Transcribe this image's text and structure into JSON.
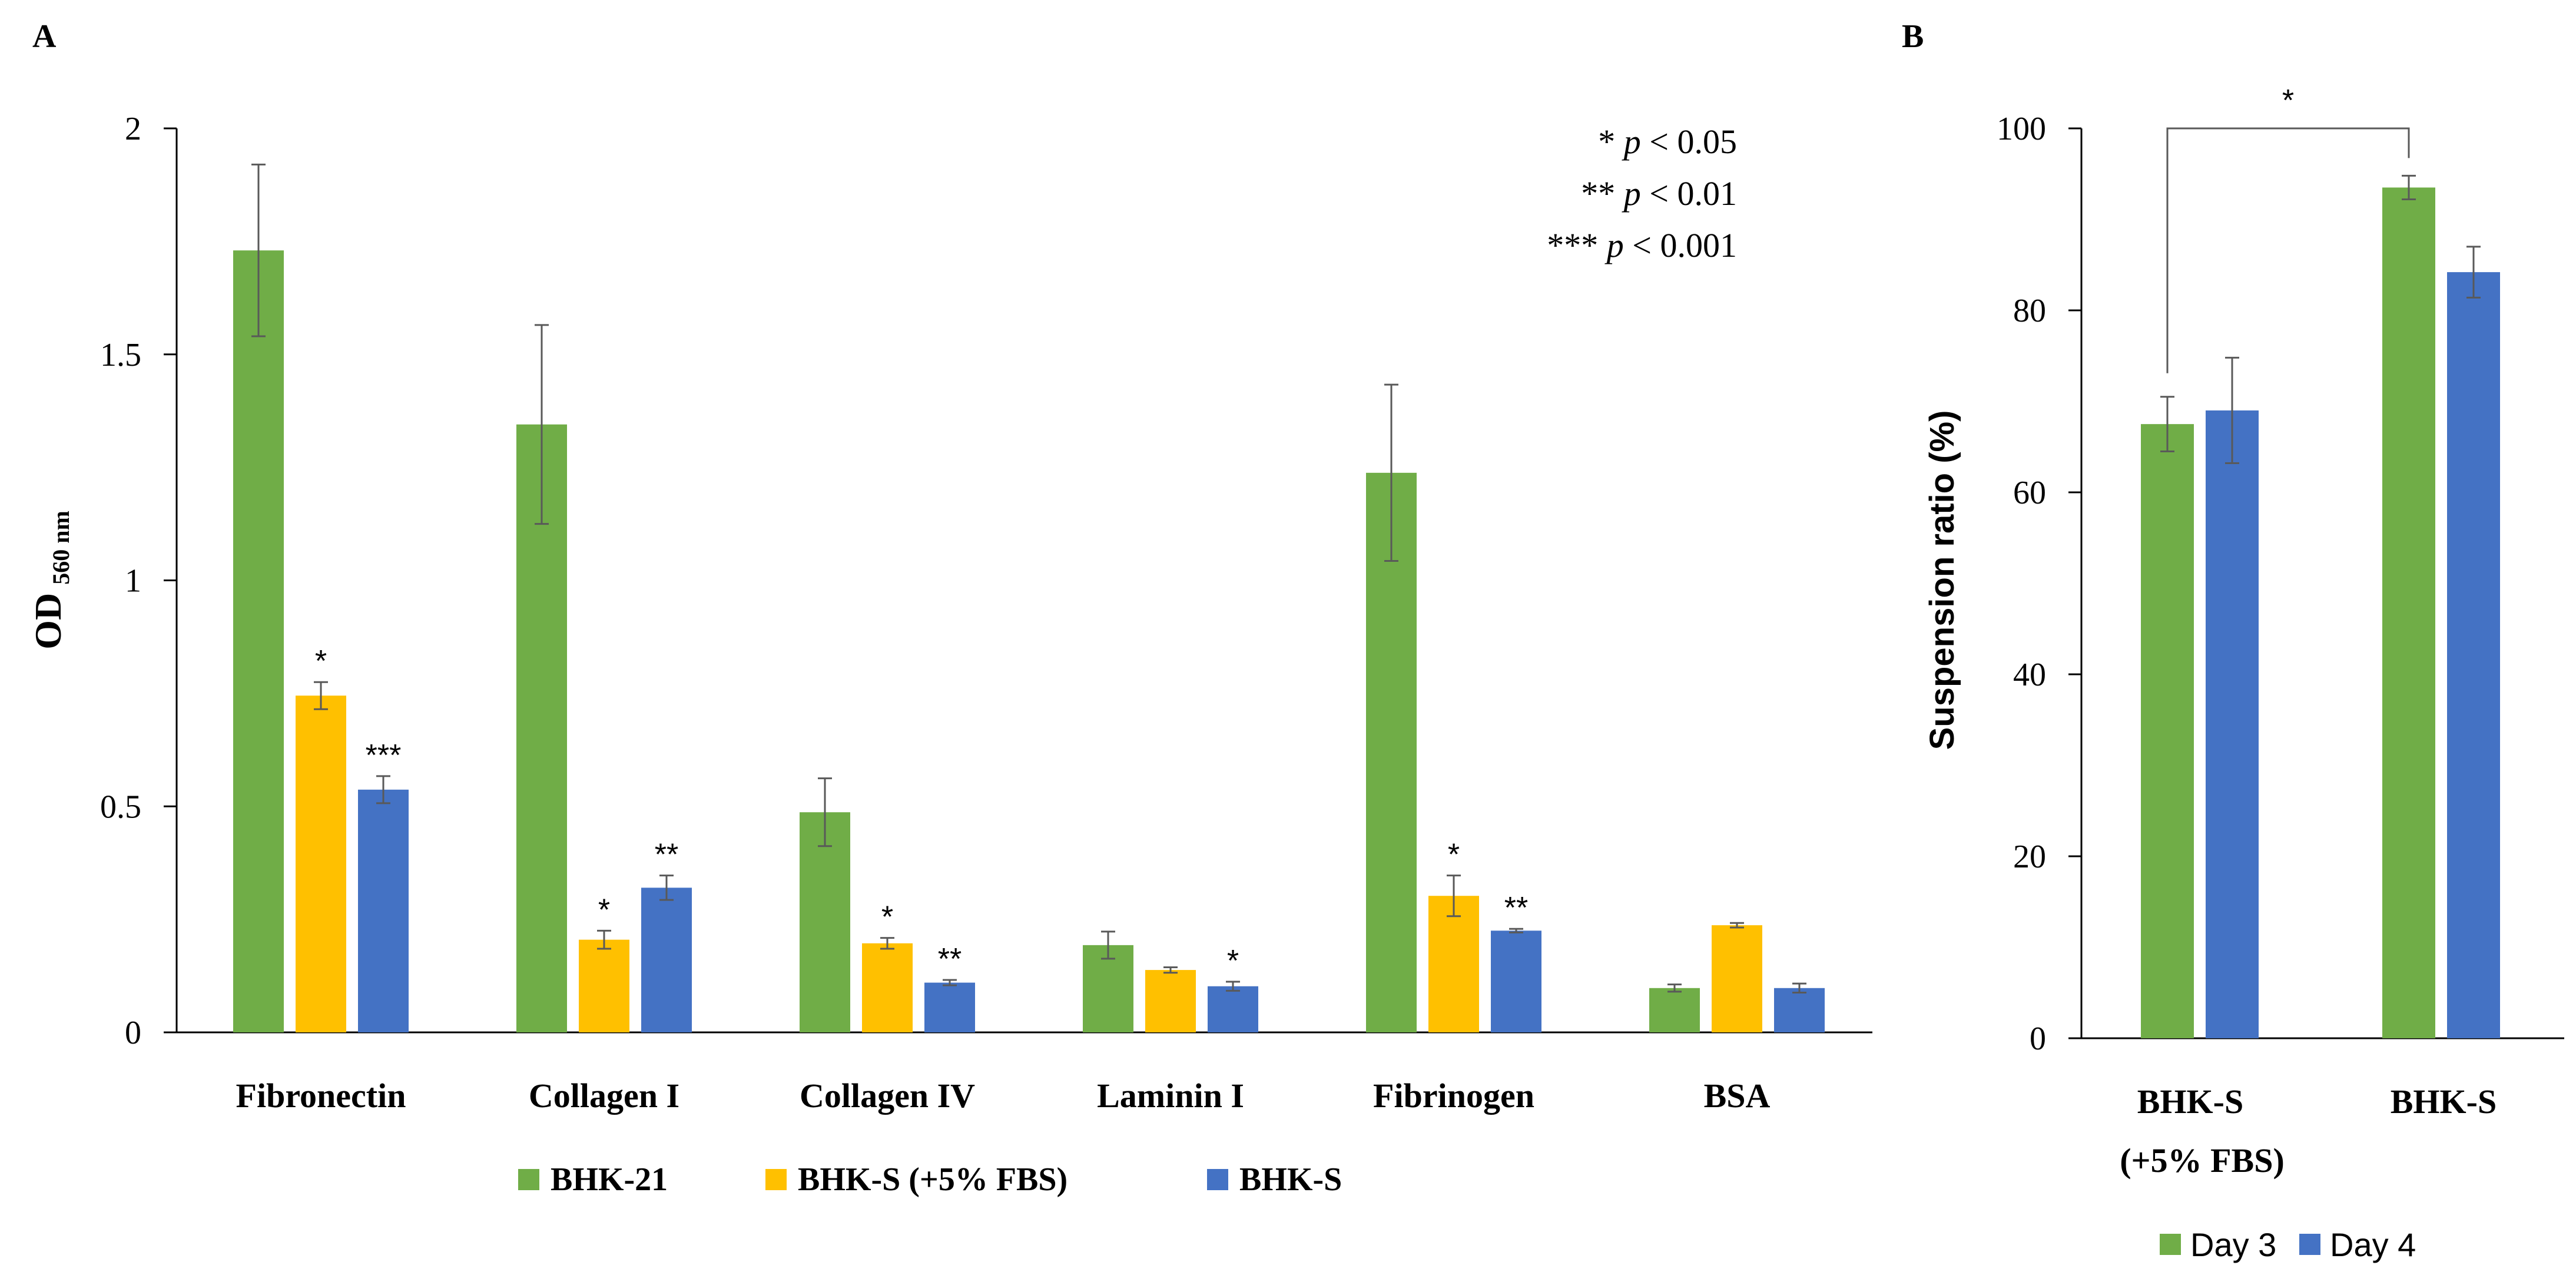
{
  "chart_data": [
    {
      "panel": "A",
      "type": "bar",
      "title": "",
      "xlabel": "",
      "ylabel_main": "OD",
      "ylabel_sub": "560 nm",
      "ylim": [
        0,
        2
      ],
      "yticks": [
        0,
        0.5,
        1,
        1.5,
        2
      ],
      "ytick_labels": [
        "0",
        "0.5",
        "1",
        "1.5",
        "2"
      ],
      "categories": [
        "Fibronectin",
        "Collagen I",
        "Collagen IV",
        "Laminin I",
        "Fibrinogen",
        "BSA"
      ],
      "series": [
        {
          "name": "BHK-21",
          "color": "#70AD47",
          "values": [
            1.73,
            1.345,
            0.487,
            0.193,
            1.238,
            0.098
          ],
          "errors": [
            0.19,
            0.22,
            0.075,
            0.03,
            0.195,
            0.008
          ],
          "sig": [
            "",
            "",
            "",
            "",
            "",
            ""
          ]
        },
        {
          "name": "BHK-S (+5% FBS)",
          "color": "#FFC000",
          "values": [
            0.745,
            0.205,
            0.197,
            0.138,
            0.302,
            0.237
          ],
          "errors": [
            0.03,
            0.02,
            0.012,
            0.006,
            0.045,
            0.005
          ],
          "sig": [
            "*",
            "*",
            "*",
            "",
            "*",
            ""
          ]
        },
        {
          "name": "BHK-S",
          "color": "#4472C4",
          "values": [
            0.537,
            0.32,
            0.11,
            0.102,
            0.225,
            0.098
          ],
          "errors": [
            0.03,
            0.027,
            0.006,
            0.01,
            0.004,
            0.01
          ],
          "sig": [
            "***",
            "**",
            "**",
            "*",
            "**",
            ""
          ]
        }
      ],
      "significance_note": [
        {
          "stars": "*",
          "p_label": "p",
          "threshold": "< 0.05"
        },
        {
          "stars": "**",
          "p_label": "p",
          "threshold": "< 0.01"
        },
        {
          "stars": "***",
          "p_label": "p",
          "threshold": "< 0.001"
        }
      ],
      "legend_position": "bottom"
    },
    {
      "panel": "B",
      "type": "bar",
      "title": "",
      "xlabel": "",
      "ylabel": "Suspension ratio (%)",
      "ylim": [
        0,
        100
      ],
      "yticks": [
        0,
        20,
        40,
        60,
        80,
        100
      ],
      "ytick_labels": [
        "0",
        "20",
        "40",
        "60",
        "80",
        "100"
      ],
      "categories": [
        {
          "line1": "BHK-S",
          "line2": "(+5% FBS)"
        },
        {
          "line1": "BHK-S",
          "line2": ""
        }
      ],
      "series": [
        {
          "name": "Day 3",
          "color": "#70AD47",
          "values": [
            67.5,
            93.5
          ],
          "errors": [
            3.0,
            1.3
          ]
        },
        {
          "name": "Day 4",
          "color": "#4472C4",
          "values": [
            69.0,
            84.2
          ],
          "errors": [
            5.8,
            2.8
          ]
        }
      ],
      "bracket": {
        "from_category": 0,
        "to_category": 1,
        "series": "Day 3",
        "label": "*"
      },
      "legend_position": "bottom"
    }
  ]
}
